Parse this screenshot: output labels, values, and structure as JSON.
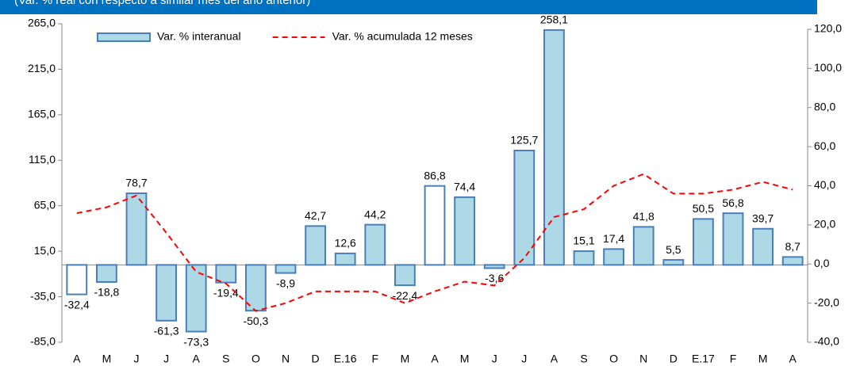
{
  "chart_data": {
    "type": "bar",
    "subtitle": "(Var. % real con respecto a similar mes del año anterior)",
    "categories": [
      "A",
      "M",
      "J",
      "J",
      "A",
      "S",
      "O",
      "N",
      "D",
      "E.16",
      "F",
      "M",
      "A",
      "M",
      "J",
      "J",
      "A",
      "S",
      "O",
      "N",
      "D",
      "E.17",
      "F",
      "M",
      "A"
    ],
    "series": [
      {
        "name": "Var. % interanual",
        "type": "bar",
        "color": "#add8e6",
        "edge_color": "#4a7ebb",
        "colors": [
          "#ffffff",
          "#add8e6",
          "#add8e6",
          "#add8e6",
          "#add8e6",
          "#add8e6",
          "#add8e6",
          "#add8e6",
          "#add8e6",
          "#add8e6",
          "#add8e6",
          "#add8e6",
          "#ffffff",
          "#add8e6",
          "#add8e6",
          "#add8e6",
          "#add8e6",
          "#add8e6",
          "#add8e6",
          "#add8e6",
          "#add8e6",
          "#add8e6",
          "#add8e6",
          "#add8e6",
          "#add8e6"
        ],
        "values": [
          -32.4,
          -18.8,
          78.7,
          -61.3,
          -73.3,
          -19.4,
          -50.3,
          -8.9,
          42.7,
          12.6,
          44.2,
          -22.4,
          86.8,
          74.4,
          -3.6,
          125.7,
          258.1,
          15.1,
          17.4,
          41.8,
          5.5,
          50.5,
          56.8,
          39.7,
          8.7
        ],
        "value_labels": [
          "-32,4",
          "-18,8",
          "78,7",
          "-61,3",
          "-73,3",
          "-19,4",
          "-50,3",
          "-8,9",
          "42,7",
          "12,6",
          "44,2",
          "-22,4",
          "86,8",
          "74,4",
          "-3,6",
          "125,7",
          "258,1",
          "15,1",
          "17,4",
          "41,8",
          "5,5",
          "50,5",
          "56,8",
          "39,7",
          "8,7"
        ]
      },
      {
        "name": "Var. % acumulada 12 meses",
        "type": "line",
        "axis": "y2",
        "color": "#ff0000",
        "dashed": true,
        "values": [
          26,
          29,
          35,
          16,
          -4,
          -10,
          -24,
          -20,
          -14,
          -14,
          -14,
          -20,
          -14,
          -9,
          -11,
          3,
          24,
          28,
          40,
          46,
          36,
          36,
          38,
          42,
          38
        ]
      }
    ],
    "ylim": [
      -85,
      265
    ],
    "yticks": [
      {
        "value": -85,
        "label": "-85,0"
      },
      {
        "value": -35,
        "label": "-35,0"
      },
      {
        "value": 15,
        "label": "15,0"
      },
      {
        "value": 65,
        "label": "65,0"
      },
      {
        "value": 115,
        "label": "115,0"
      },
      {
        "value": 165,
        "label": "165,0"
      },
      {
        "value": 215,
        "label": "215,0"
      },
      {
        "value": 265,
        "label": "265,0"
      }
    ],
    "y2lim": [
      -40,
      120
    ],
    "y2ticks": [
      {
        "value": -40,
        "label": "-40,0"
      },
      {
        "value": -20,
        "label": "-20,0"
      },
      {
        "value": 0,
        "label": "0,0"
      },
      {
        "value": 20,
        "label": "20,0"
      },
      {
        "value": 40,
        "label": "40,0"
      },
      {
        "value": 60,
        "label": "60,0"
      },
      {
        "value": 80,
        "label": "80,0"
      },
      {
        "value": 100,
        "label": "100,0"
      },
      {
        "value": 120,
        "label": "120,0"
      }
    ],
    "grid": false
  }
}
